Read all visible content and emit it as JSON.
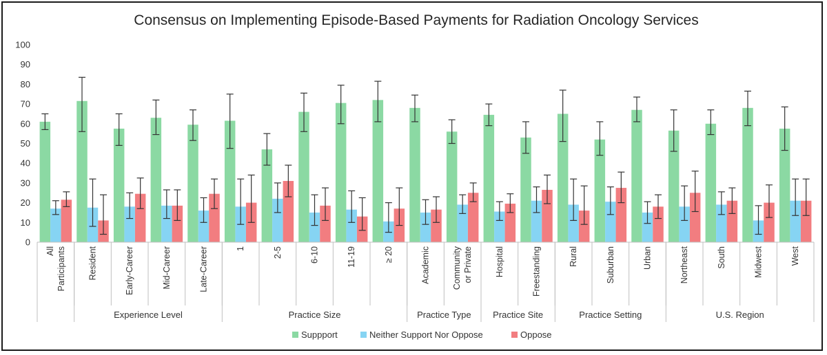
{
  "chart_data": {
    "type": "bar",
    "title": "Consensus on Implementing Episode-Based Payments for Radiation Oncology Services",
    "ylim": [
      0,
      100
    ],
    "yticks": [
      0,
      10,
      20,
      30,
      40,
      50,
      60,
      70,
      80,
      90,
      100
    ],
    "grid": false,
    "legend_position": "bottom",
    "colors": {
      "support": "#8BD9A3",
      "neither": "#86D4F3",
      "oppose": "#F27D80",
      "error": "#333333",
      "axis": "#bfbfbf"
    },
    "categories": [
      {
        "label": [
          "All",
          "Participants"
        ]
      },
      {
        "label": [
          "Resident"
        ]
      },
      {
        "label": [
          "Early-Career"
        ]
      },
      {
        "label": [
          "Mid-Career"
        ]
      },
      {
        "label": [
          "Late-Career"
        ]
      },
      {
        "label": [
          "1"
        ]
      },
      {
        "label": [
          "2-5"
        ]
      },
      {
        "label": [
          "6-10"
        ]
      },
      {
        "label": [
          "11-19"
        ]
      },
      {
        "label": [
          "≥ 20"
        ]
      },
      {
        "label": [
          "Academic"
        ]
      },
      {
        "label": [
          "Community",
          "or Private"
        ]
      },
      {
        "label": [
          "Hospital"
        ]
      },
      {
        "label": [
          "Freestanding"
        ]
      },
      {
        "label": [
          "Rural"
        ]
      },
      {
        "label": [
          "Suburban"
        ]
      },
      {
        "label": [
          "Urban"
        ]
      },
      {
        "label": [
          "Northeast"
        ]
      },
      {
        "label": [
          "South"
        ]
      },
      {
        "label": [
          "Midwest"
        ]
      },
      {
        "label": [
          "West"
        ]
      }
    ],
    "groups": [
      {
        "name": "",
        "count": 1
      },
      {
        "name": "Experience Level",
        "count": 4
      },
      {
        "name": "Practice Size",
        "count": 5
      },
      {
        "name": "Practice Type",
        "count": 2
      },
      {
        "name": "Practice Site",
        "count": 2
      },
      {
        "name": "Practice Setting",
        "count": 3
      },
      {
        "name": "U.S. Region",
        "count": 4
      }
    ],
    "series": [
      {
        "key": "support",
        "name": "Suppport",
        "values": [
          61,
          71.5,
          57.5,
          63,
          59.5,
          61.5,
          47,
          66,
          70.5,
          72,
          68,
          56,
          64.5,
          53,
          65,
          52,
          67,
          56.5,
          60,
          68,
          57.5
        ],
        "lower": [
          57,
          56,
          49,
          54.5,
          51.5,
          47.5,
          39,
          56,
          60,
          61,
          61,
          50,
          59,
          45,
          51,
          44,
          61,
          46,
          54.5,
          59,
          46.5
        ],
        "upper": [
          65,
          83.5,
          65,
          72,
          67,
          75,
          55,
          75.5,
          79.5,
          81.5,
          74.5,
          62,
          70,
          61,
          77,
          61,
          73.5,
          67,
          67,
          76.5,
          68.5
        ]
      },
      {
        "key": "neither",
        "name": "Neither Support Nor Oppose",
        "values": [
          17,
          17.5,
          18,
          18.5,
          16,
          18,
          22,
          15,
          16.5,
          10.5,
          15,
          19,
          15.5,
          21,
          19,
          20.5,
          15,
          18,
          19,
          11,
          21
        ],
        "lower": [
          14,
          8,
          12,
          12,
          10,
          9,
          15,
          8.5,
          10,
          5,
          9,
          14.5,
          11,
          15,
          11,
          14,
          9.5,
          11,
          14,
          4,
          13.5
        ],
        "upper": [
          21,
          32,
          25,
          26.5,
          22.5,
          32,
          30,
          24,
          26,
          20,
          21.5,
          24,
          20.5,
          28,
          32,
          28,
          20.5,
          28.5,
          25.5,
          18.5,
          32
        ]
      },
      {
        "key": "oppose",
        "name": "Oppose",
        "values": [
          21.5,
          11,
          24.5,
          18.5,
          24.5,
          20,
          31,
          18.5,
          13,
          17,
          16.5,
          25,
          19.5,
          26.5,
          16,
          27.5,
          18,
          25,
          21,
          20,
          21
        ],
        "lower": [
          18,
          4,
          17,
          11,
          17,
          10,
          23,
          11,
          6,
          8.5,
          10,
          20.5,
          15,
          19.5,
          9,
          20,
          12,
          15.5,
          14.5,
          12.5,
          13.5
        ],
        "upper": [
          25.5,
          24,
          32.5,
          26.5,
          32,
          34,
          39,
          27.5,
          22.5,
          27.5,
          23,
          30,
          24.5,
          34,
          28.5,
          35.5,
          24,
          36,
          27.5,
          29,
          32
        ]
      }
    ]
  }
}
